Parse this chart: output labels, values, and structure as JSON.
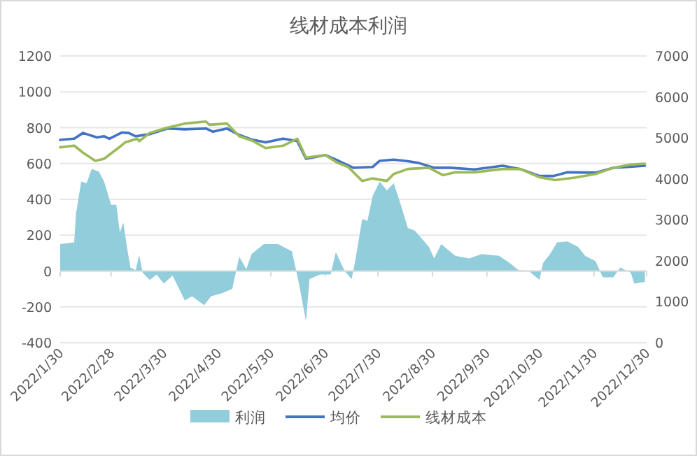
{
  "chart_data": {
    "type": "line",
    "title": "线材成本利润",
    "xlim": [
      "2022-01-30",
      "2022-12-30"
    ],
    "xticks": [
      {
        "value": "2022-01-30",
        "label": "2022/1/30"
      },
      {
        "value": "2022-02-28",
        "label": "2022/2/28"
      },
      {
        "value": "2022-03-30",
        "label": "2022/3/30"
      },
      {
        "value": "2022-04-30",
        "label": "2022/4/30"
      },
      {
        "value": "2022-05-30",
        "label": "2022/5/30"
      },
      {
        "value": "2022-06-30",
        "label": "2022/6/30"
      },
      {
        "value": "2022-07-30",
        "label": "2022/7/30"
      },
      {
        "value": "2022-08-30",
        "label": "2022/8/30"
      },
      {
        "value": "2022-09-30",
        "label": "2022/9/30"
      },
      {
        "value": "2022-10-30",
        "label": "2022/10/30"
      },
      {
        "value": "2022-11-30",
        "label": "2022/11/30"
      },
      {
        "value": "2022-12-30",
        "label": "2022/12/30"
      }
    ],
    "ylim": [
      -400,
      1200
    ],
    "yticks": [
      -400,
      -200,
      0,
      200,
      400,
      600,
      800,
      1000,
      1200
    ],
    "y2lim": [
      0,
      7000
    ],
    "y2ticks": [
      0,
      1000,
      2000,
      3000,
      4000,
      5000,
      6000,
      7000
    ],
    "grid": "y",
    "legend": "bottom",
    "series": [
      {
        "name": "利润",
        "type": "area",
        "axis": "y",
        "color": "#92cddc",
        "x": [
          "2022-01-30",
          "2022-02-07",
          "2022-02-08",
          "2022-02-11",
          "2022-02-14",
          "2022-02-17",
          "2022-02-21",
          "2022-02-24",
          "2022-02-28",
          "2022-03-03",
          "2022-03-05",
          "2022-03-07",
          "2022-03-09",
          "2022-03-11",
          "2022-03-14",
          "2022-03-16",
          "2022-03-18",
          "2022-03-22",
          "2022-03-26",
          "2022-03-30",
          "2022-04-04",
          "2022-04-11",
          "2022-04-15",
          "2022-04-22",
          "2022-04-26",
          "2022-05-02",
          "2022-05-08",
          "2022-05-12",
          "2022-05-16",
          "2022-05-19",
          "2022-05-26",
          "2022-06-03",
          "2022-06-11",
          "2022-06-15",
          "2022-06-19",
          "2022-06-21",
          "2022-06-27",
          "2022-07-03",
          "2022-07-06",
          "2022-07-11",
          "2022-07-15",
          "2022-07-17",
          "2022-07-21",
          "2022-07-24",
          "2022-07-27",
          "2022-07-31",
          "2022-08-04",
          "2022-08-08",
          "2022-08-12",
          "2022-08-16",
          "2022-08-20",
          "2022-08-28",
          "2022-08-31",
          "2022-09-04",
          "2022-09-12",
          "2022-09-20",
          "2022-09-27",
          "2022-10-07",
          "2022-10-13",
          "2022-10-18",
          "2022-10-24",
          "2022-10-30",
          "2022-11-01",
          "2022-11-05",
          "2022-11-09",
          "2022-11-15",
          "2022-11-21",
          "2022-11-25",
          "2022-12-01",
          "2022-12-05",
          "2022-12-11",
          "2022-12-15",
          "2022-12-21",
          "2022-12-23",
          "2022-12-29"
        ],
        "values": [
          150,
          160,
          320,
          500,
          490,
          570,
          555,
          500,
          370,
          370,
          215,
          270,
          135,
          20,
          5,
          90,
          -10,
          -50,
          -20,
          -70,
          -25,
          -165,
          -140,
          -190,
          -140,
          -125,
          -100,
          80,
          10,
          95,
          150,
          150,
          110,
          -70,
          -280,
          -45,
          -20,
          -20,
          105,
          0,
          -45,
          55,
          290,
          280,
          420,
          500,
          450,
          490,
          370,
          240,
          225,
          135,
          70,
          150,
          85,
          70,
          95,
          85,
          45,
          5,
          0,
          -50,
          45,
          95,
          160,
          165,
          135,
          85,
          55,
          -35,
          -35,
          20,
          -10,
          -70,
          -60
        ]
      },
      {
        "name": "均价",
        "axis": "y2",
        "color": "#4472c4",
        "x": [
          "2022-01-30",
          "2022-02-07",
          "2022-02-12",
          "2022-02-20",
          "2022-02-24",
          "2022-02-27",
          "2022-03-06",
          "2022-03-10",
          "2022-03-14",
          "2022-03-22",
          "2022-04-01",
          "2022-04-11",
          "2022-04-23",
          "2022-04-27",
          "2022-05-05",
          "2022-05-12",
          "2022-05-19",
          "2022-05-27",
          "2022-06-06",
          "2022-06-14",
          "2022-06-19",
          "2022-06-30",
          "2022-07-08",
          "2022-07-16",
          "2022-07-27",
          "2022-07-31",
          "2022-08-08",
          "2022-08-16",
          "2022-08-22",
          "2022-08-31",
          "2022-09-09",
          "2022-09-23",
          "2022-10-09",
          "2022-10-19",
          "2022-10-30",
          "2022-11-07",
          "2022-11-15",
          "2022-12-01",
          "2022-12-11",
          "2022-12-19",
          "2022-12-29"
        ],
        "values": [
          4950,
          4980,
          5120,
          5010,
          5040,
          4980,
          5130,
          5120,
          5040,
          5090,
          5230,
          5210,
          5230,
          5150,
          5230,
          5070,
          4960,
          4890,
          4980,
          4920,
          4490,
          4580,
          4430,
          4270,
          4290,
          4440,
          4470,
          4430,
          4390,
          4270,
          4270,
          4230,
          4320,
          4240,
          4070,
          4070,
          4160,
          4150,
          4270,
          4290,
          4320
        ]
      },
      {
        "name": "线材成本",
        "axis": "y2",
        "color": "#9bbb59",
        "x": [
          "2022-01-30",
          "2022-02-07",
          "2022-02-12",
          "2022-02-19",
          "2022-02-24",
          "2022-03-04",
          "2022-03-08",
          "2022-03-15",
          "2022-03-16",
          "2022-03-22",
          "2022-04-01",
          "2022-04-11",
          "2022-04-23",
          "2022-04-25",
          "2022-05-05",
          "2022-05-12",
          "2022-05-20",
          "2022-05-27",
          "2022-06-06",
          "2022-06-14",
          "2022-06-19",
          "2022-06-30",
          "2022-07-07",
          "2022-07-13",
          "2022-07-21",
          "2022-07-27",
          "2022-08-04",
          "2022-08-08",
          "2022-08-16",
          "2022-08-28",
          "2022-09-05",
          "2022-09-12",
          "2022-09-23",
          "2022-10-09",
          "2022-10-19",
          "2022-10-30",
          "2022-11-08",
          "2022-11-19",
          "2022-12-01",
          "2022-12-11",
          "2022-12-21",
          "2022-12-29"
        ],
        "values": [
          4770,
          4810,
          4640,
          4440,
          4490,
          4750,
          4890,
          4980,
          4920,
          5120,
          5250,
          5350,
          5400,
          5320,
          5350,
          5040,
          4920,
          4750,
          4810,
          4980,
          4520,
          4580,
          4390,
          4290,
          3950,
          4010,
          3950,
          4120,
          4240,
          4270,
          4090,
          4160,
          4160,
          4240,
          4240,
          4040,
          3970,
          4030,
          4120,
          4270,
          4350,
          4370
        ]
      }
    ]
  }
}
